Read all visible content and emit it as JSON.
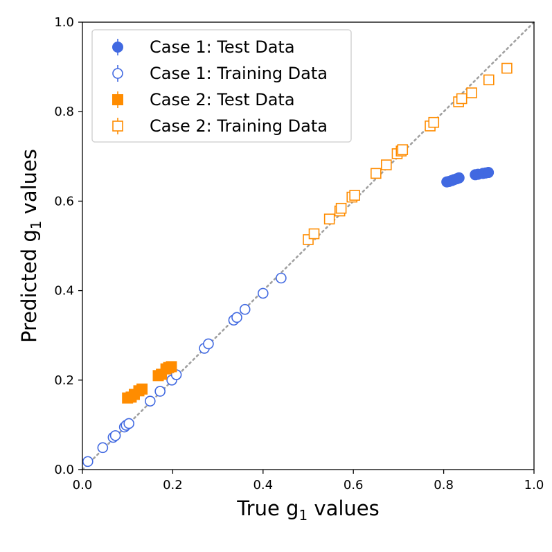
{
  "chart_data": {
    "type": "scatter",
    "title": "",
    "xlabel": "True g",
    "xlabel_sub": "1",
    "xlabel_suffix": " values",
    "ylabel": "Predicted g",
    "ylabel_sub": "1",
    "ylabel_suffix": " values",
    "xlim": [
      0.0,
      1.0
    ],
    "ylim": [
      0.0,
      1.0
    ],
    "xticks": [
      0.0,
      0.2,
      0.4,
      0.6,
      0.8,
      1.0
    ],
    "yticks": [
      0.0,
      0.2,
      0.4,
      0.6,
      0.8,
      1.0
    ],
    "xtick_labels": [
      "0.0",
      "0.2",
      "0.4",
      "0.6",
      "0.8",
      "1.0"
    ],
    "ytick_labels": [
      "0.0",
      "0.2",
      "0.4",
      "0.6",
      "0.8",
      "1.0"
    ],
    "grid": false,
    "legend_position": "top-left",
    "reference_line": {
      "style": "dotted",
      "color": "#a0a0a0",
      "from": [
        0,
        0
      ],
      "to": [
        1,
        1
      ]
    },
    "series": [
      {
        "name": "Case 1: Test Data",
        "marker": "circle",
        "filled": true,
        "color": "#4169e1",
        "points": [
          [
            0.807,
            0.643
          ],
          [
            0.812,
            0.644
          ],
          [
            0.818,
            0.646
          ],
          [
            0.823,
            0.648
          ],
          [
            0.829,
            0.65
          ],
          [
            0.834,
            0.652
          ],
          [
            0.87,
            0.659
          ],
          [
            0.876,
            0.66
          ],
          [
            0.887,
            0.662
          ],
          [
            0.893,
            0.663
          ],
          [
            0.899,
            0.664
          ]
        ]
      },
      {
        "name": "Case 1: Training Data",
        "marker": "circle",
        "filled": false,
        "color": "#4169e1",
        "points": [
          [
            0.012,
            0.018
          ],
          [
            0.045,
            0.049
          ],
          [
            0.068,
            0.072
          ],
          [
            0.073,
            0.076
          ],
          [
            0.093,
            0.095
          ],
          [
            0.097,
            0.099
          ],
          [
            0.103,
            0.103
          ],
          [
            0.15,
            0.153
          ],
          [
            0.172,
            0.175
          ],
          [
            0.198,
            0.2
          ],
          [
            0.208,
            0.212
          ],
          [
            0.27,
            0.271
          ],
          [
            0.279,
            0.281
          ],
          [
            0.335,
            0.334
          ],
          [
            0.342,
            0.34
          ],
          [
            0.36,
            0.358
          ],
          [
            0.4,
            0.394
          ],
          [
            0.44,
            0.428
          ]
        ]
      },
      {
        "name": "Case 2: Test Data",
        "marker": "square",
        "filled": true,
        "color": "#ff8c00",
        "points": [
          [
            0.1,
            0.16
          ],
          [
            0.108,
            0.162
          ],
          [
            0.115,
            0.168
          ],
          [
            0.125,
            0.176
          ],
          [
            0.132,
            0.18
          ],
          [
            0.168,
            0.21
          ],
          [
            0.175,
            0.213
          ],
          [
            0.185,
            0.225
          ],
          [
            0.191,
            0.228
          ],
          [
            0.197,
            0.23
          ]
        ]
      },
      {
        "name": "Case 2: Training Data",
        "marker": "square",
        "filled": false,
        "color": "#ff8c00",
        "points": [
          [
            0.5,
            0.514
          ],
          [
            0.513,
            0.527
          ],
          [
            0.547,
            0.56
          ],
          [
            0.57,
            0.578
          ],
          [
            0.573,
            0.584
          ],
          [
            0.597,
            0.609
          ],
          [
            0.603,
            0.613
          ],
          [
            0.65,
            0.662
          ],
          [
            0.673,
            0.681
          ],
          [
            0.697,
            0.706
          ],
          [
            0.706,
            0.712
          ],
          [
            0.709,
            0.715
          ],
          [
            0.77,
            0.768
          ],
          [
            0.778,
            0.776
          ],
          [
            0.833,
            0.822
          ],
          [
            0.84,
            0.829
          ],
          [
            0.862,
            0.842
          ],
          [
            0.9,
            0.871
          ],
          [
            0.94,
            0.897
          ]
        ]
      }
    ]
  }
}
